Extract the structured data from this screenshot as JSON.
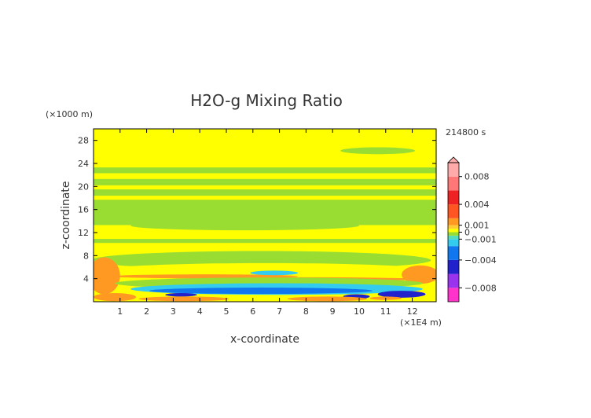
{
  "chart_data": {
    "type": "heatmap",
    "title": "H2O-g Mixing Ratio",
    "xlabel": "x-coordinate",
    "ylabel": "z-coordinate",
    "x_unit": "(×1E4 m)",
    "y_unit": "(×1000 m)",
    "time_label": "214800 s",
    "xlim": [
      0,
      12.9
    ],
    "ylim": [
      0,
      30
    ],
    "x_ticks": [
      1,
      2,
      3,
      4,
      5,
      6,
      7,
      8,
      9,
      10,
      11,
      12
    ],
    "y_ticks": [
      4,
      8,
      12,
      16,
      20,
      24,
      28
    ],
    "colorbar": {
      "range": [
        -0.01,
        0.01
      ],
      "labels": [
        {
          "value": 0.008,
          "text": "0.008"
        },
        {
          "value": 0.004,
          "text": "0.004"
        },
        {
          "value": 0.001,
          "text": "0.001"
        },
        {
          "value": 0,
          "text": "0"
        },
        {
          "value": -0.001,
          "text": "−0.001"
        },
        {
          "value": -0.004,
          "text": "−0.004"
        },
        {
          "value": -0.008,
          "text": "−0.008"
        }
      ],
      "bins": [
        {
          "from": -0.01,
          "to": -0.008,
          "color": "#ff33cc"
        },
        {
          "from": -0.008,
          "to": -0.006,
          "color": "#9933ee"
        },
        {
          "from": -0.006,
          "to": -0.004,
          "color": "#2222cc"
        },
        {
          "from": -0.004,
          "to": -0.002,
          "color": "#1177ee"
        },
        {
          "from": -0.002,
          "to": -0.001,
          "color": "#33ccee"
        },
        {
          "from": -0.001,
          "to": -0.0005,
          "color": "#55ddbb"
        },
        {
          "from": -0.0005,
          "to": 0,
          "color": "#99dd33"
        },
        {
          "from": 0,
          "to": 0.0005,
          "color": "#ffff00"
        },
        {
          "from": 0.0005,
          "to": 0.001,
          "color": "#ffcc33"
        },
        {
          "from": 0.001,
          "to": 0.002,
          "color": "#ff9922"
        },
        {
          "from": 0.002,
          "to": 0.004,
          "color": "#ff5522"
        },
        {
          "from": 0.004,
          "to": 0.006,
          "color": "#ee2222"
        },
        {
          "from": 0.006,
          "to": 0.008,
          "color": "#ff7777"
        },
        {
          "from": 0.008,
          "to": 0.01,
          "color": "#ffaaaa"
        }
      ]
    },
    "background_color": "#ffff00",
    "regions": [
      {
        "shape": "band",
        "y": [
          22.3,
          23.3
        ],
        "color": "#99dd33"
      },
      {
        "shape": "band",
        "y": [
          20.2,
          21.3
        ],
        "color": "#99dd33"
      },
      {
        "shape": "band",
        "y": [
          18.4,
          19.5
        ],
        "color": "#99dd33"
      },
      {
        "shape": "band",
        "y": [
          13.3,
          17.7
        ],
        "color": "#99dd33"
      },
      {
        "shape": "band",
        "y": [
          10.2,
          10.9
        ],
        "color": "#99dd33"
      },
      {
        "shape": "blob",
        "cx": 10.7,
        "cy": 26.2,
        "rx": 1.4,
        "ry": 0.6,
        "color": "#99dd33"
      },
      {
        "shape": "blob",
        "cx": 5.7,
        "cy": 13.2,
        "rx": 4.3,
        "ry": 0.8,
        "color": "#99dd33"
      },
      {
        "shape": "blob",
        "cx": 6.3,
        "cy": 7.2,
        "rx": 6.4,
        "ry": 1.6,
        "color": "#99dd33"
      },
      {
        "shape": "blob",
        "cx": 6.5,
        "cy": 5.3,
        "rx": 6.5,
        "ry": 1.4,
        "color": "#ffff00"
      },
      {
        "shape": "blob",
        "cx": 0.4,
        "cy": 4.5,
        "rx": 0.6,
        "ry": 3.2,
        "color": "#ff9922"
      },
      {
        "shape": "blob",
        "cx": 12.3,
        "cy": 4.7,
        "rx": 0.7,
        "ry": 1.6,
        "color": "#ff9922"
      },
      {
        "shape": "blob",
        "cx": 4.2,
        "cy": 4.4,
        "rx": 3.5,
        "ry": 0.35,
        "color": "#ff9922"
      },
      {
        "shape": "blob",
        "cx": 7.6,
        "cy": 3.9,
        "rx": 4.6,
        "ry": 0.35,
        "color": "#ff9922"
      },
      {
        "shape": "blob",
        "cx": 6.6,
        "cy": 3.2,
        "rx": 5.8,
        "ry": 1.0,
        "color": "#99dd33"
      },
      {
        "shape": "blob",
        "cx": 6.8,
        "cy": 5.0,
        "rx": 0.9,
        "ry": 0.4,
        "color": "#33ccee"
      },
      {
        "shape": "blob",
        "cx": 6.9,
        "cy": 2.2,
        "rx": 5.5,
        "ry": 1.0,
        "color": "#33ccee"
      },
      {
        "shape": "blob",
        "cx": 6.3,
        "cy": 1.9,
        "rx": 4.2,
        "ry": 0.55,
        "color": "#1177ee"
      },
      {
        "shape": "blob",
        "cx": 11.6,
        "cy": 1.3,
        "rx": 0.9,
        "ry": 0.6,
        "color": "#2222cc"
      },
      {
        "shape": "blob",
        "cx": 9.9,
        "cy": 0.9,
        "rx": 0.5,
        "ry": 0.4,
        "color": "#2222cc"
      },
      {
        "shape": "blob",
        "cx": 3.3,
        "cy": 1.2,
        "rx": 0.6,
        "ry": 0.3,
        "color": "#2222cc"
      },
      {
        "shape": "blob",
        "cx": 0.8,
        "cy": 0.8,
        "rx": 0.8,
        "ry": 0.7,
        "color": "#ff9922"
      },
      {
        "shape": "blob",
        "cx": 3.4,
        "cy": 0.5,
        "rx": 1.7,
        "ry": 0.4,
        "color": "#ff9922"
      },
      {
        "shape": "blob",
        "cx": 8.8,
        "cy": 0.5,
        "rx": 1.5,
        "ry": 0.4,
        "color": "#ff9922"
      },
      {
        "shape": "blob",
        "cx": 11.0,
        "cy": 0.6,
        "rx": 0.6,
        "ry": 0.3,
        "color": "#ff9922"
      }
    ]
  }
}
